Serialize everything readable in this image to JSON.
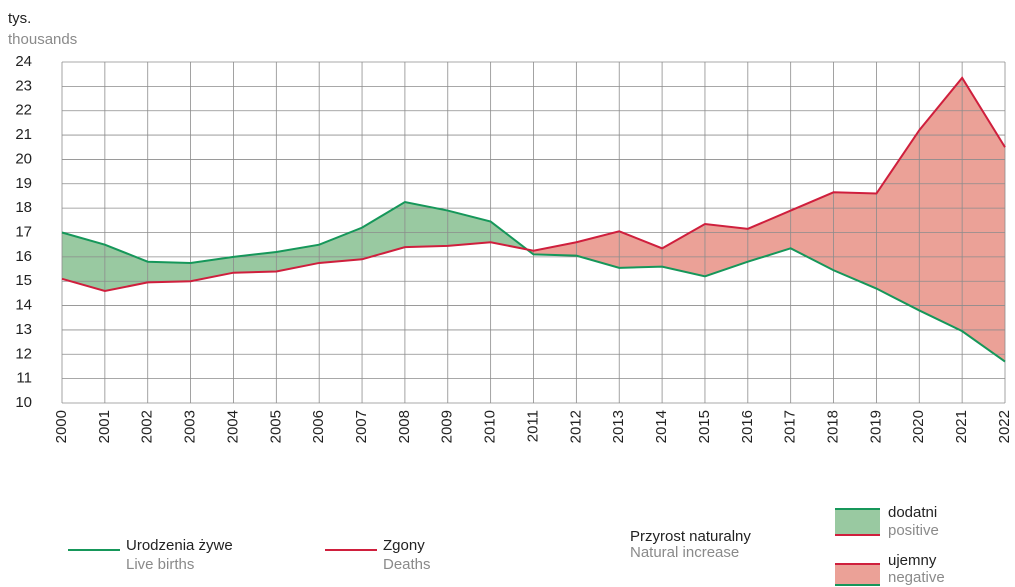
{
  "chart_data": {
    "type": "line",
    "unit_label": "tys.",
    "unit_label_en": "thousands",
    "categories": [
      "2000",
      "2001",
      "2002",
      "2003",
      "2004",
      "2005",
      "2006",
      "2007",
      "2008",
      "2009",
      "2010",
      "2011",
      "2012",
      "2013",
      "2014",
      "2015",
      "2016",
      "2017",
      "2018",
      "2019",
      "2020",
      "2021",
      "2022"
    ],
    "series": [
      {
        "name": "Urodzenia żywe",
        "name_en": "Live births",
        "color": "#16975a",
        "values": [
          17.0,
          16.5,
          15.8,
          15.75,
          16.0,
          16.2,
          16.5,
          17.2,
          18.25,
          17.9,
          17.45,
          16.1,
          16.05,
          15.55,
          15.6,
          15.2,
          15.8,
          16.35,
          15.45,
          14.7,
          13.8,
          12.95,
          11.7
        ]
      },
      {
        "name": "Zgony",
        "name_en": "Deaths",
        "color": "#cf1f3d",
        "values": [
          15.1,
          14.6,
          14.95,
          15.0,
          15.35,
          15.4,
          15.75,
          15.9,
          16.4,
          16.45,
          16.6,
          16.25,
          16.6,
          17.05,
          16.35,
          17.35,
          17.15,
          17.9,
          18.65,
          18.6,
          21.2,
          23.35,
          20.5
        ]
      }
    ],
    "area_legend": {
      "title": "Przyrost naturalny",
      "title_en": "Natural increase",
      "positive": {
        "label": "dodatni",
        "label_en": "positive",
        "color": "#99c9a1"
      },
      "negative": {
        "label": "ujemny",
        "label_en": "negative",
        "color": "#eba197"
      }
    },
    "ylim": [
      10,
      24
    ],
    "yticks": [
      10,
      11,
      12,
      13,
      14,
      15,
      16,
      17,
      18,
      19,
      20,
      21,
      22,
      23,
      24
    ],
    "grid": true
  }
}
